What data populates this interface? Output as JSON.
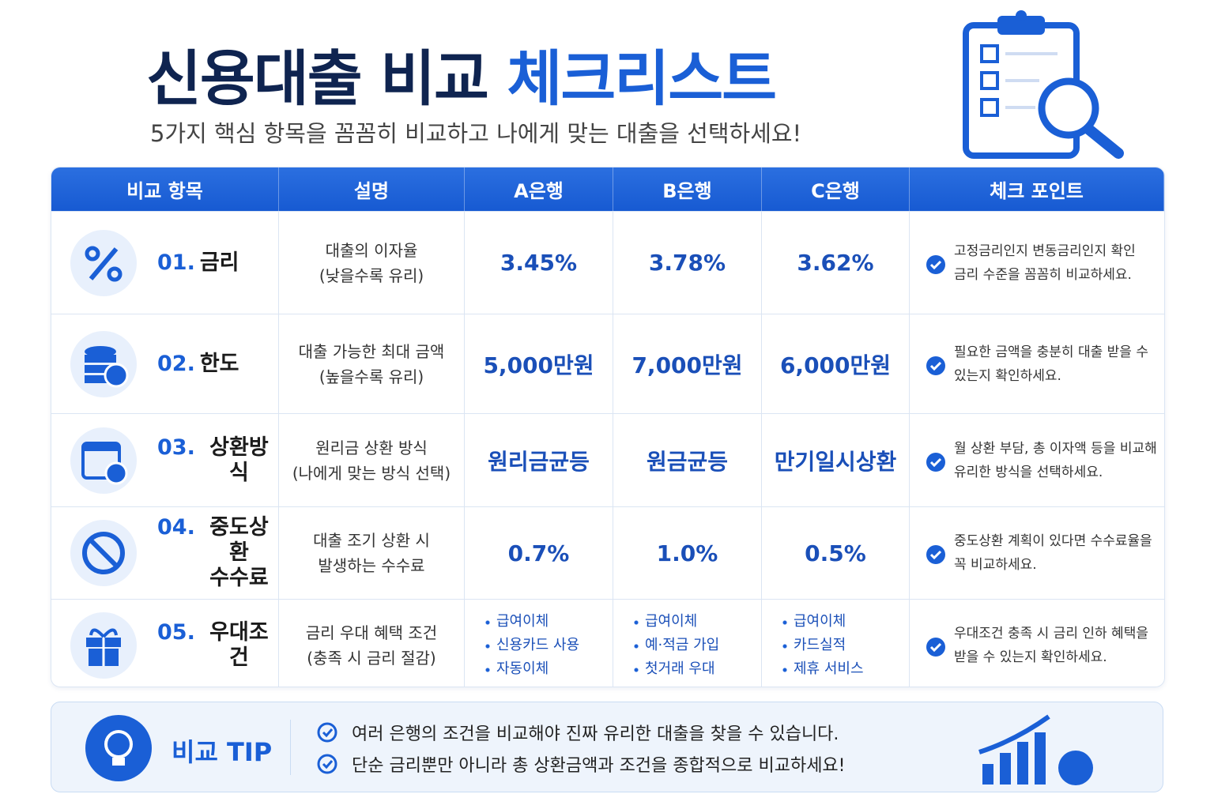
{
  "header": {
    "title_main": "신용대출 비교",
    "title_accent": "체크리스트",
    "subtitle": "5가지 핵심 항목을 꼼꼼히 비교하고 나에게 맞는 대출을 선택하세요!"
  },
  "table": {
    "columns": [
      "비교 항목",
      "설명",
      "A은행",
      "B은행",
      "C은행",
      "체크 포인트"
    ],
    "rows": [
      {
        "number": "01.",
        "label": [
          "금리"
        ],
        "description": [
          "대출의 이자율",
          "(낮을수록 유리)"
        ],
        "banks": [
          "3.45%",
          "3.78%",
          "3.62%"
        ],
        "check": [
          "고정금리인지 변동금리인지 확인",
          "금리 수준을 꼼꼼히 비교하세요."
        ]
      },
      {
        "number": "02.",
        "label": [
          "한도"
        ],
        "description": [
          "대출 가능한 최대 금액",
          "(높을수록 유리)"
        ],
        "banks": [
          "5,000만원",
          "7,000만원",
          "6,000만원"
        ],
        "check": [
          "필요한 금액을 충분히 대출 받을 수",
          "있는지 확인하세요."
        ]
      },
      {
        "number": "03.",
        "label": [
          "상환방식"
        ],
        "description": [
          "원리금 상환 방식",
          "(나에게 맞는 방식 선택)"
        ],
        "banks": [
          "원리금균등",
          "원금균등",
          "만기일시상환"
        ],
        "check": [
          "월 상환 부담, 총 이자액 등을 비교해",
          "유리한 방식을 선택하세요."
        ]
      },
      {
        "number": "04.",
        "label": [
          "중도상환",
          "수수료"
        ],
        "description": [
          "대출 조기 상환 시",
          "발생하는 수수료"
        ],
        "banks": [
          "0.7%",
          "1.0%",
          "0.5%"
        ],
        "check": [
          "중도상환 계획이 있다면 수수료율을",
          "꼭 비교하세요."
        ]
      },
      {
        "number": "05.",
        "label": [
          "우대조건"
        ],
        "description": [
          "금리 우대 혜택 조건",
          "(충족 시 금리 절감)"
        ],
        "banks": [
          [
            "급여이체",
            "신용카드 사용",
            "자동이체"
          ],
          [
            "급여이체",
            "예·적금 가입",
            "첫거래 우대"
          ],
          [
            "급여이체",
            "카드실적",
            "제휴 서비스"
          ]
        ],
        "check": [
          "우대조건 충족 시 금리 인하 혜택을",
          "받을 수 있는지 확인하세요."
        ]
      }
    ]
  },
  "tip": {
    "label": "비교 TIP",
    "items": [
      "여러 은행의 조건을 비교해야 진짜 유리한 대출을 찾을 수 있습니다.",
      "단순 금리뿐만 아니라 총 상환금액과 조건을 종합적으로 비교하세요!"
    ]
  }
}
